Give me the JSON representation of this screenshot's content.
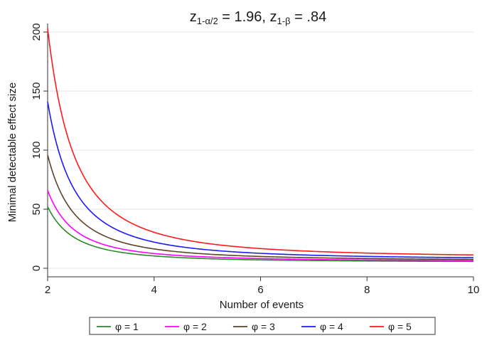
{
  "chart_data": {
    "type": "line",
    "title": {
      "parts": [
        {
          "text": "z",
          "style": "normal"
        },
        {
          "text": "1-α/2",
          "style": "sub"
        },
        {
          "text": " = 1.96, z",
          "style": "normal"
        },
        {
          "text": "1-β",
          "style": "sub"
        },
        {
          "text": " = .84",
          "style": "normal"
        }
      ]
    },
    "xlabel": "Number of events",
    "ylabel": "Minimal detectable effect size",
    "xlim": [
      2,
      10
    ],
    "ylim": [
      0,
      200
    ],
    "xticks": [
      2,
      4,
      6,
      8,
      10
    ],
    "yticks": [
      0,
      50,
      100,
      150,
      200
    ],
    "grid": "horizontal",
    "legend_position": "bottom",
    "model": "y = A / (x - 1)^2 + B",
    "series": [
      {
        "name": "φ = 1",
        "color": "#2a8a2a",
        "A": 47.0,
        "B": 5.2,
        "x": [
          2,
          3,
          4,
          5,
          6,
          7,
          8,
          9,
          10
        ],
        "values": [
          52.2,
          17.0,
          10.4,
          8.1,
          7.1,
          6.5,
          6.2,
          5.9,
          5.8
        ]
      },
      {
        "name": "φ = 2",
        "color": "#ff00ff",
        "A": 60.2,
        "B": 5.8,
        "x": [
          2,
          3,
          4,
          5,
          6,
          7,
          8,
          9,
          10
        ],
        "values": [
          66.0,
          20.9,
          12.5,
          9.6,
          8.2,
          7.5,
          7.0,
          6.7,
          6.5
        ]
      },
      {
        "name": "φ = 3",
        "color": "#5c4228",
        "A": 89.6,
        "B": 6.4,
        "x": [
          2,
          3,
          4,
          5,
          6,
          7,
          8,
          9,
          10
        ],
        "values": [
          96.0,
          28.8,
          16.4,
          12.0,
          10.0,
          8.9,
          8.2,
          7.8,
          7.5
        ]
      },
      {
        "name": "φ = 4",
        "color": "#1a1aff",
        "A": 133.7,
        "B": 7.3,
        "x": [
          2,
          3,
          4,
          5,
          6,
          7,
          8,
          9,
          10
        ],
        "values": [
          141.0,
          40.7,
          22.2,
          15.7,
          12.7,
          11.0,
          10.0,
          9.4,
          8.9
        ]
      },
      {
        "name": "φ = 5",
        "color": "#ff1a1a",
        "A": 194.1,
        "B": 8.9,
        "x": [
          2,
          3,
          4,
          5,
          6,
          7,
          8,
          9,
          10
        ],
        "values": [
          203.0,
          57.4,
          30.5,
          21.0,
          16.7,
          14.3,
          12.9,
          11.9,
          11.3
        ]
      }
    ]
  }
}
